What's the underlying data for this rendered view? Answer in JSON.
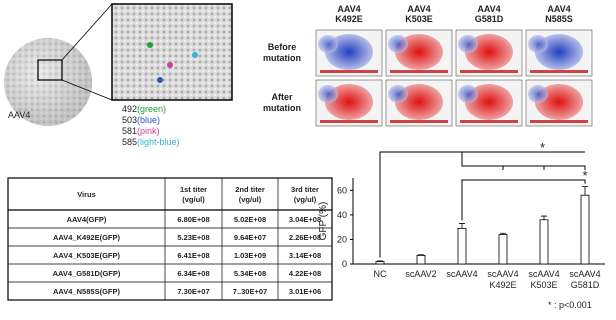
{
  "capsid": {
    "label": "AAV4",
    "legend": [
      [
        "492",
        "(green)"
      ],
      [
        "503",
        "(blue)"
      ],
      [
        "581",
        "(pink)"
      ],
      [
        "585",
        "(light-blue)"
      ]
    ],
    "legend_colors": [
      "#22a03a",
      "#2a56c6",
      "#d0409a",
      "#3bb0d8"
    ]
  },
  "surface": {
    "mutants": [
      [
        "AAV4",
        "K492E"
      ],
      [
        "AAV4",
        "K503E"
      ],
      [
        "AAV4",
        "G581D"
      ],
      [
        "AAV4",
        "N585S"
      ]
    ],
    "rows": [
      [
        "Before",
        "mutation"
      ],
      [
        "After",
        "mutation"
      ]
    ]
  },
  "table": {
    "header": [
      [
        "Virus"
      ],
      [
        "1st titer",
        "(vg/ul)"
      ],
      [
        "2nd titer",
        "(vg/ul)"
      ],
      [
        "3rd titer",
        "(vg/ul)"
      ]
    ],
    "rows": [
      [
        "AAV4(GFP)",
        "6.80E+08",
        "5.02E+08",
        "3.04E+08"
      ],
      [
        "AAV4_K492E(GFP)",
        "5.23E+08",
        "9.64E+07",
        "2.26E+08"
      ],
      [
        "AAV4_K503E(GFP)",
        "6.41E+08",
        "1.03E+09",
        "3.14E+08"
      ],
      [
        "AAV4_G581D(GFP)",
        "6.34E+08",
        "5.34E+08",
        "4.22E+08"
      ],
      [
        "AAV4_N585S(GFP)",
        "7.30E+07",
        "7..30E+07",
        "3.01E+06"
      ]
    ]
  },
  "chart_data": {
    "type": "bar",
    "ylabel": "GFP (%)",
    "categories": [
      [
        "NC"
      ],
      [
        "scAAV2"
      ],
      [
        "scAAV4"
      ],
      [
        "scAAV4",
        "K492E"
      ],
      [
        "scAAV4",
        "K503E"
      ],
      [
        "scAAV4",
        "G581D"
      ]
    ],
    "values": [
      2,
      7,
      29,
      24,
      36,
      56
    ],
    "errors": [
      0.5,
      0.5,
      4,
      1,
      3,
      7
    ],
    "color": "#ffffff",
    "ylim": [
      0,
      70
    ],
    "yticks": [
      0,
      20,
      40,
      60
    ],
    "annotations": [
      "*",
      "*",
      "* : p<0.001"
    ]
  }
}
